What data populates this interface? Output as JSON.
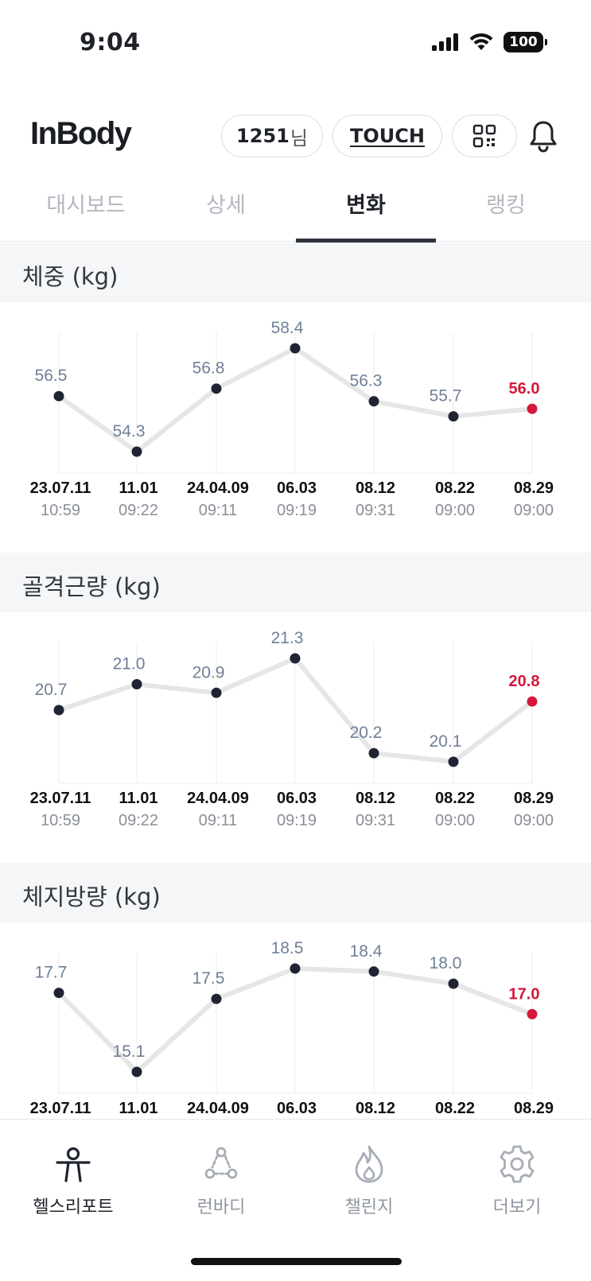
{
  "status_bar": {
    "time": "9:04",
    "battery": "100"
  },
  "header": {
    "logo": "InBody",
    "user_id": "1251",
    "user_suffix": "님",
    "touch_label": "TOUCH"
  },
  "tabs": [
    {
      "label": "대시보드"
    },
    {
      "label": "상세"
    },
    {
      "label": "변화"
    },
    {
      "label": "랭킹"
    }
  ],
  "sections": [
    {
      "title": "체중 (kg)"
    },
    {
      "title": "골격근량 (kg)"
    },
    {
      "title": "체지방량 (kg)"
    }
  ],
  "chart_data": [
    {
      "type": "line",
      "title": "체중 (kg)",
      "x": [
        "23.07.11",
        "11.01",
        "24.04.09",
        "06.03",
        "08.12",
        "08.22",
        "08.29"
      ],
      "times": [
        "10:59",
        "09:22",
        "09:11",
        "09:19",
        "09:31",
        "09:00",
        "09:00"
      ],
      "values": [
        56.5,
        54.3,
        56.8,
        58.4,
        56.3,
        55.7,
        56.0
      ],
      "labels": [
        "56.5",
        "54.3",
        "56.8",
        "58.4",
        "56.3",
        "55.7",
        "56.0"
      ],
      "highlight_last": true
    },
    {
      "type": "line",
      "title": "골격근량 (kg)",
      "x": [
        "23.07.11",
        "11.01",
        "24.04.09",
        "06.03",
        "08.12",
        "08.22",
        "08.29"
      ],
      "times": [
        "10:59",
        "09:22",
        "09:11",
        "09:19",
        "09:31",
        "09:00",
        "09:00"
      ],
      "values": [
        20.7,
        21.0,
        20.9,
        21.3,
        20.2,
        20.1,
        20.8
      ],
      "labels": [
        "20.7",
        "21.0",
        "20.9",
        "21.3",
        "20.2",
        "20.1",
        "20.8"
      ],
      "highlight_last": true
    },
    {
      "type": "line",
      "title": "체지방량 (kg)",
      "x": [
        "23.07.11",
        "11.01",
        "24.04.09",
        "06.03",
        "08.12",
        "08.22",
        "08.29"
      ],
      "times": [],
      "values": [
        17.7,
        15.1,
        17.5,
        18.5,
        18.4,
        18.0,
        17.0
      ],
      "labels": [
        "17.7",
        "15.1",
        "17.5",
        "18.5",
        "18.4",
        "18.0",
        "17.0"
      ],
      "highlight_last": true
    }
  ],
  "bottom_nav": [
    {
      "label": "헬스리포트",
      "icon": "person-icon",
      "active": true
    },
    {
      "label": "런바디",
      "icon": "runbody-icon",
      "active": false
    },
    {
      "label": "챌린지",
      "icon": "flame-icon",
      "active": false
    },
    {
      "label": "더보기",
      "icon": "gear-icon",
      "active": false
    }
  ],
  "colors": {
    "highlight": "#d6173c",
    "point": "#1f2433",
    "line": "#e6e6e6",
    "label": "#6f7f97",
    "grid": "#ececee"
  }
}
